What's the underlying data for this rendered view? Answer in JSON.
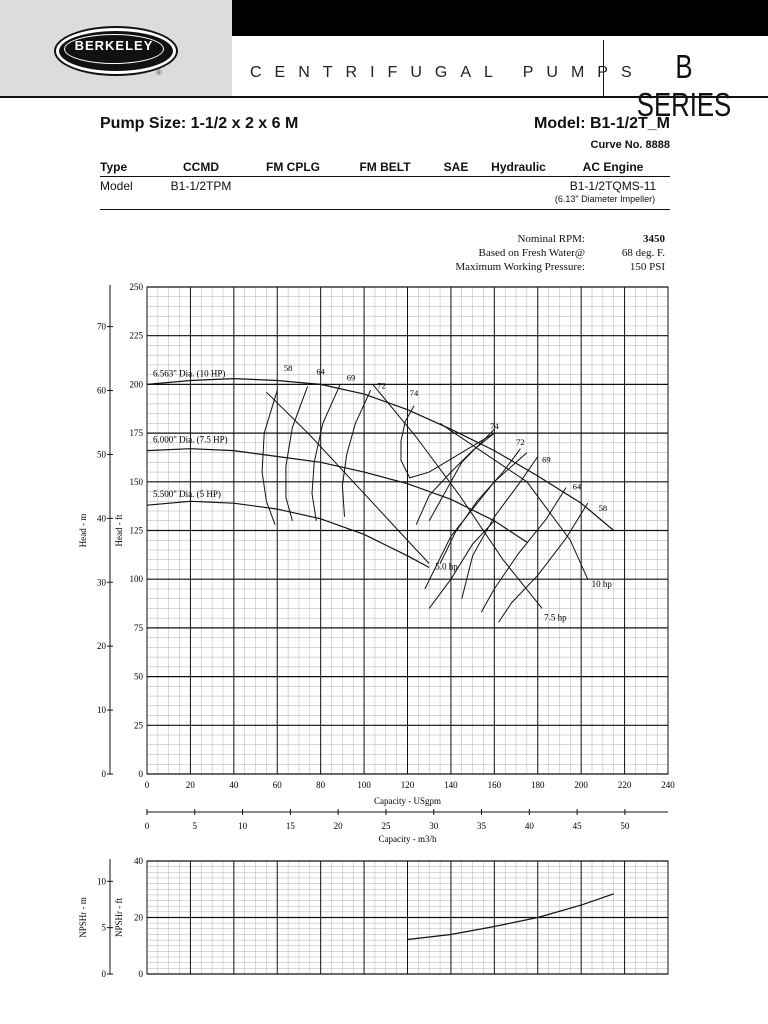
{
  "header": {
    "brand": "BERKELEY",
    "registered": "®",
    "category": "CENTRIFUGAL PUMPS",
    "series": "B SERIES"
  },
  "pump": {
    "size": "Pump Size: 1-1/2 x 2 x 6 M",
    "model": "Model: B1-1/2T_M",
    "curve_no": "Curve No. 8888"
  },
  "spec_table": {
    "headers": [
      "Type",
      "CCMD",
      "FM CPLG",
      "FM BELT",
      "SAE",
      "Hydraulic",
      "AC Engine"
    ],
    "model_row": [
      "Model",
      "B1-1/2TPM",
      "",
      "",
      "",
      "",
      "B1-1/2TQMS-11"
    ],
    "impeller_note": "(6.13\" Diameter Impeller)"
  },
  "conditions": [
    {
      "label": "Nominal RPM:",
      "value": "3450"
    },
    {
      "label": "Based on Fresh Water@",
      "value": "68 deg. F."
    },
    {
      "label": "Maximum Working Pressure:",
      "value": "150 PSI"
    }
  ],
  "colors": {
    "ink": "#111111",
    "panel": "#dcdcdc",
    "grid_minor": "#b0b0b0",
    "grid_major": "#111111"
  },
  "chart_data": [
    {
      "type": "line",
      "xlabel": "Capacity - USgpm",
      "xlabel_secondary": "Capacity - m3/h",
      "ylabel": "Head - ft",
      "ylabel_secondary": "Head - m",
      "xlim": [
        0,
        240
      ],
      "ylim": [
        0,
        250
      ],
      "x_ticks": [
        0,
        20,
        40,
        60,
        80,
        100,
        120,
        140,
        160,
        180,
        200,
        220,
        240
      ],
      "y_ticks": [
        0,
        25,
        50,
        75,
        100,
        125,
        150,
        175,
        200,
        225,
        250
      ],
      "x2_ticks": [
        0,
        5,
        10,
        15,
        20,
        25,
        30,
        35,
        40,
        45,
        50
      ],
      "y2_ticks": [
        0,
        10,
        20,
        30,
        40,
        50,
        60,
        70
      ],
      "grid": true,
      "impeller_curves": [
        {
          "name": "6.563\" Dia. (10 HP)",
          "x": [
            0,
            20,
            40,
            60,
            80,
            100,
            120,
            140,
            160,
            180,
            200,
            215
          ],
          "y": [
            200,
            202,
            203,
            202,
            200,
            195,
            187,
            177,
            166,
            153,
            139,
            125
          ]
        },
        {
          "name": "6.000\" Dia. (7.5 HP)",
          "x": [
            0,
            20,
            40,
            60,
            80,
            100,
            120,
            140,
            160,
            175
          ],
          "y": [
            166,
            167,
            166,
            163,
            160,
            155,
            149,
            141,
            130,
            119
          ]
        },
        {
          "name": "5.500\" Dia. (5 HP)",
          "x": [
            0,
            20,
            40,
            60,
            80,
            100,
            120,
            130
          ],
          "y": [
            138,
            140,
            139,
            136,
            131,
            123,
            112,
            106
          ]
        }
      ],
      "efficiency_labels": [
        {
          "label": "58",
          "x": 65,
          "y": 207
        },
        {
          "label": "64",
          "x": 80,
          "y": 205
        },
        {
          "label": "69",
          "x": 94,
          "y": 202
        },
        {
          "label": "72",
          "x": 108,
          "y": 198
        },
        {
          "label": "74",
          "x": 123,
          "y": 194
        },
        {
          "label": "74",
          "x": 160,
          "y": 177
        },
        {
          "label": "72",
          "x": 172,
          "y": 169
        },
        {
          "label": "69",
          "x": 184,
          "y": 160
        },
        {
          "label": "64",
          "x": 198,
          "y": 146
        },
        {
          "label": "58",
          "x": 210,
          "y": 135
        }
      ],
      "efficiency_contours": [
        {
          "x": [
            60,
            54,
            53,
            55,
            59
          ],
          "y": [
            197,
            175,
            155,
            140,
            128
          ]
        },
        {
          "x": [
            74,
            67,
            64,
            64,
            67
          ],
          "y": [
            199,
            178,
            158,
            142,
            130
          ]
        },
        {
          "x": [
            89,
            81,
            77,
            76,
            78
          ],
          "y": [
            200,
            180,
            160,
            144,
            130
          ]
        },
        {
          "x": [
            103,
            96,
            92,
            90,
            91
          ],
          "y": [
            197,
            180,
            164,
            148,
            132
          ]
        },
        {
          "x": [
            123,
            119,
            117,
            117,
            121,
            130,
            160
          ],
          "y": [
            189,
            181,
            171,
            161,
            152,
            155,
            175
          ]
        },
        {
          "x": [
            160,
            150,
            140,
            130,
            124
          ],
          "y": [
            175,
            166,
            155,
            143,
            128
          ]
        },
        {
          "x": [
            172,
            164,
            152,
            142,
            135
          ],
          "y": [
            167,
            155,
            140,
            124,
            108
          ]
        },
        {
          "x": [
            180,
            172,
            160,
            150,
            145
          ],
          "y": [
            163,
            150,
            132,
            112,
            90
          ]
        },
        {
          "x": [
            193,
            184,
            171,
            160,
            154
          ],
          "y": [
            147,
            131,
            113,
            95,
            83
          ]
        },
        {
          "x": [
            203,
            193,
            180,
            168,
            162
          ],
          "y": [
            139,
            121,
            102,
            88,
            78
          ]
        }
      ],
      "hp_curves": [
        {
          "label": "5.0 hp",
          "x": [
            55,
            75,
            95,
            115,
            130
          ],
          "y": [
            196,
            174,
            150,
            126,
            108
          ]
        },
        {
          "label": "7.5 hp",
          "x": [
            104,
            124,
            144,
            164,
            182
          ],
          "y": [
            200,
            173,
            143,
            110,
            85
          ]
        },
        {
          "label": "10 hp",
          "x": [
            135,
            155,
            175,
            195,
            203
          ],
          "y": [
            180,
            165,
            150,
            120,
            100
          ]
        }
      ],
      "hp_lines": [
        {
          "x": [
            160,
            145,
            130
          ],
          "y": [
            177,
            160,
            130
          ]
        },
        {
          "x": [
            160,
            150,
            140,
            130
          ],
          "y": [
            130,
            118,
            100,
            85
          ]
        },
        {
          "x": [
            175,
            160,
            140,
            128
          ],
          "y": [
            165,
            150,
            122,
            95
          ]
        }
      ]
    },
    {
      "type": "line",
      "ylabel": "NPSHr - ft",
      "ylabel_secondary": "NPSHr - m",
      "xlim": [
        0,
        240
      ],
      "ylim": [
        0,
        40
      ],
      "y_ticks": [
        0,
        20,
        40
      ],
      "y2_ticks": [
        0,
        5,
        10
      ],
      "grid": true,
      "series": [
        {
          "name": "NPSHr",
          "x": [
            120,
            140,
            160,
            180,
            200,
            215
          ],
          "y": [
            12.2,
            14.0,
            16.8,
            20.0,
            24.4,
            28.4
          ]
        }
      ]
    }
  ]
}
